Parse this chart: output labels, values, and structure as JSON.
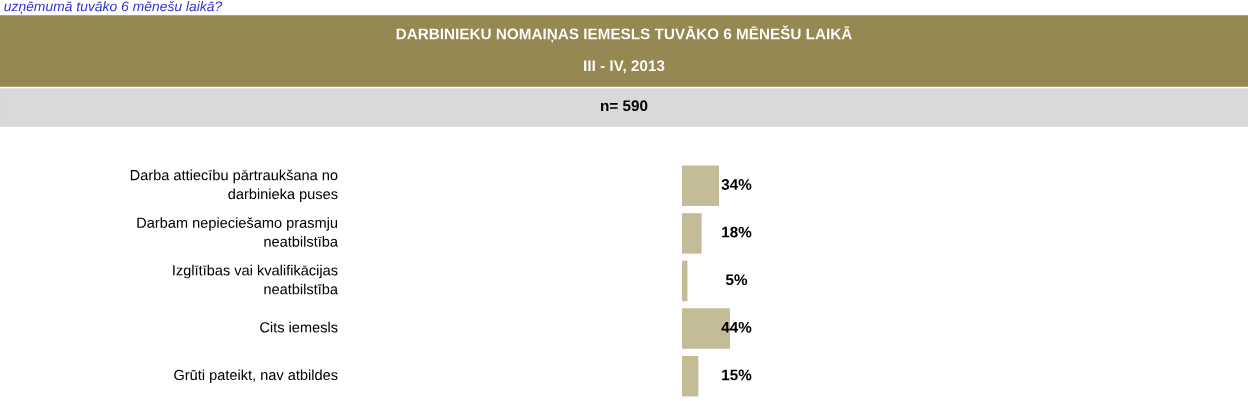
{
  "chart_data": {
    "type": "bar",
    "orientation": "horizontal",
    "title": "DARBINIEKU NOMAIŅAS IEMESLS TUVĀKO 6 MĒNEŠU LAIKĀ",
    "subtitle": "III - IV, 2013",
    "annotations": [
      "uzņēmumā tuvāko 6 mēnešu laikā?",
      "n= 590"
    ],
    "categories": [
      "Darba attiecību pārtraukšana no\ndarbinieka puses",
      "Darbam nepieciešamo prasmju\nneatbilstība",
      "Izglītības vai kvalifikācijas\nneatbilstība",
      "Cits iemesls",
      "Grūti pateikt, nav atbildes"
    ],
    "values": [
      34,
      18,
      5,
      44,
      15
    ],
    "value_labels": [
      "34%",
      "18%",
      "5%",
      "44%",
      "15%"
    ],
    "color": "#c4bc96"
  }
}
